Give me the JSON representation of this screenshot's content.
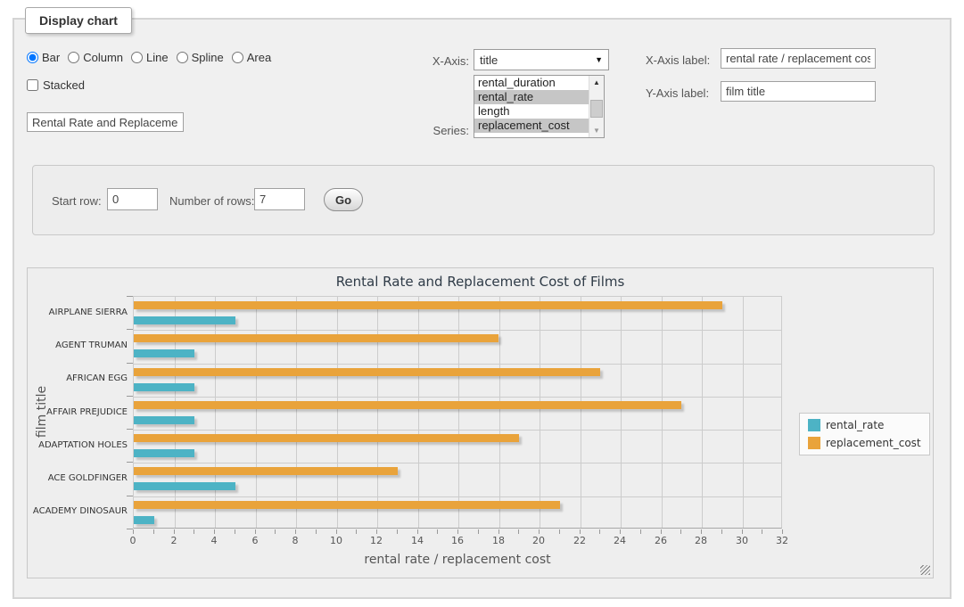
{
  "window": {
    "fieldset_legend": "Display chart"
  },
  "controls": {
    "chart_types": [
      {
        "label": "Bar",
        "selected": true
      },
      {
        "label": "Column",
        "selected": false
      },
      {
        "label": "Line",
        "selected": false
      },
      {
        "label": "Spline",
        "selected": false
      },
      {
        "label": "Area",
        "selected": false
      }
    ],
    "stacked": {
      "label": "Stacked",
      "checked": false
    },
    "title_input": {
      "value": "Rental Rate and Replacemer"
    },
    "x_axis": {
      "label": "X-Axis:",
      "selected_value": "title"
    },
    "series": {
      "label": "Series:",
      "options": [
        {
          "label": "rental_duration",
          "selected": false
        },
        {
          "label": "rental_rate",
          "selected": true
        },
        {
          "label": "length",
          "selected": false
        },
        {
          "label": "replacement_cost",
          "selected": true
        }
      ]
    },
    "x_axis_label": {
      "label": "X-Axis label:",
      "value": "rental rate / replacement cost"
    },
    "y_axis_label": {
      "label": "Y-Axis label:",
      "value": "film title"
    }
  },
  "pagination": {
    "start_row_label": "Start row:",
    "start_row_value": "0",
    "num_rows_label": "Number of rows:",
    "num_rows_value": "7",
    "go_label": "Go"
  },
  "chart_data": {
    "type": "bar",
    "orientation": "horizontal",
    "title": "Rental Rate and Replacement Cost of Films",
    "xlabel": "rental rate / replacement cost",
    "ylabel": "film title",
    "categories": [
      "AIRPLANE SIERRA",
      "AGENT TRUMAN",
      "AFRICAN EGG",
      "AFFAIR PREJUDICE",
      "ADAPTATION HOLES",
      "ACE GOLDFINGER",
      "ACADEMY DINOSAUR"
    ],
    "series": [
      {
        "name": "rental_rate",
        "color": "#4DB3C5",
        "values": [
          4.99,
          2.99,
          2.99,
          2.99,
          2.99,
          4.99,
          0.99
        ]
      },
      {
        "name": "replacement_cost",
        "color": "#E9A33B",
        "values": [
          28.99,
          17.99,
          22.99,
          26.99,
          18.99,
          12.99,
          20.99
        ]
      }
    ],
    "bar_order_top_to_bottom": [
      "replacement_cost",
      "rental_rate"
    ],
    "xlim": [
      0,
      32
    ],
    "x_label_tick_step": 2,
    "x_minor_tick_step": 1,
    "grid": true,
    "legend_position": "right"
  }
}
